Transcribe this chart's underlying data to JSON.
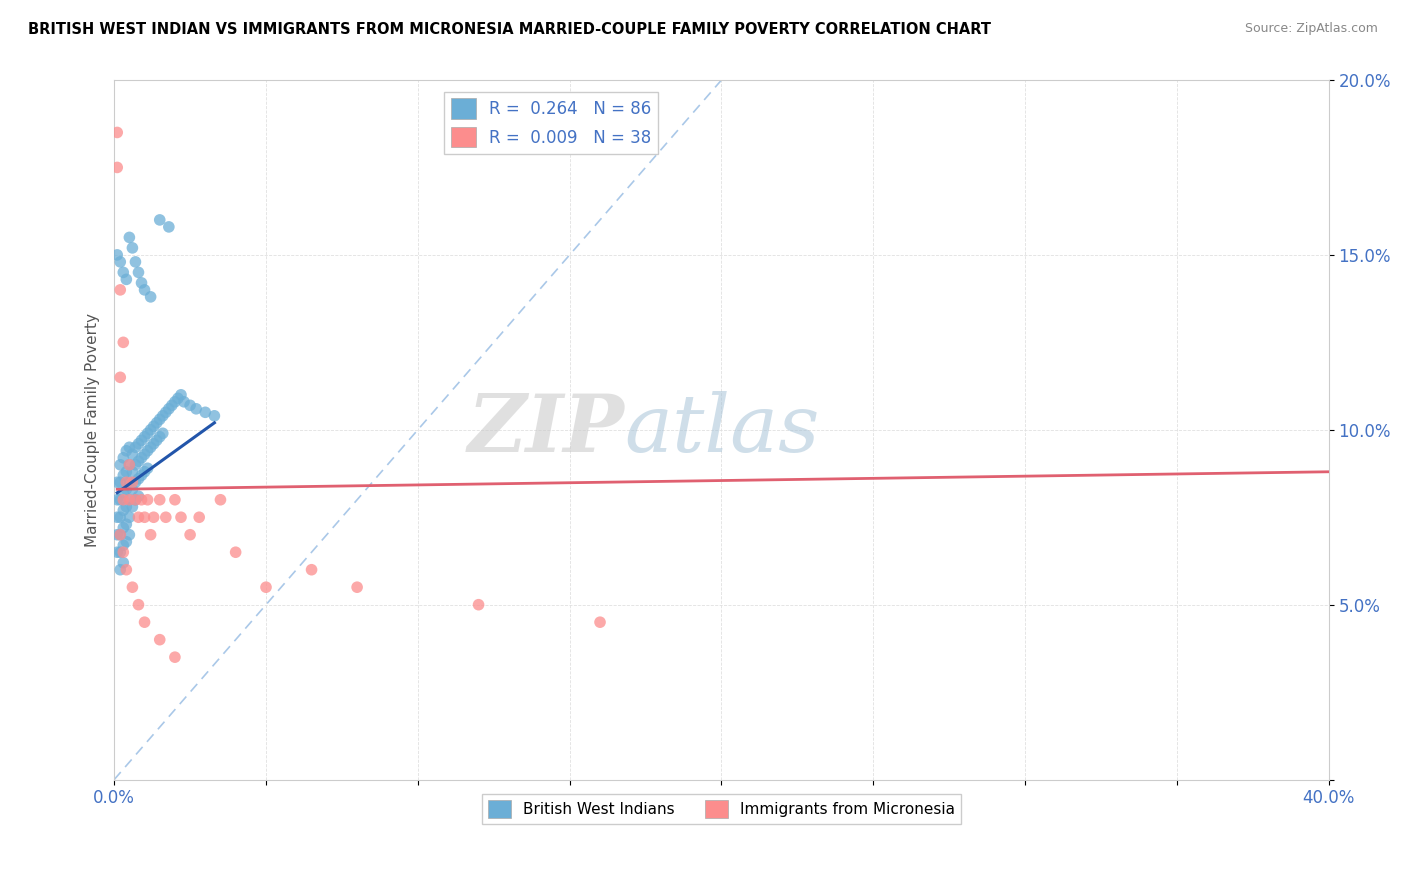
{
  "title": "BRITISH WEST INDIAN VS IMMIGRANTS FROM MICRONESIA MARRIED-COUPLE FAMILY POVERTY CORRELATION CHART",
  "source": "Source: ZipAtlas.com",
  "ylabel": "Married-Couple Family Poverty",
  "xlim": [
    0,
    0.4
  ],
  "ylim": [
    0,
    0.2
  ],
  "blue_color": "#6baed6",
  "pink_color": "#fc8d8d",
  "blue_line_color": "#2255aa",
  "pink_line_color": "#e06070",
  "ref_line_color": "#aac8e8",
  "watermark_zip": "ZIP",
  "watermark_atlas": "atlas",
  "blue_scatter_x": [
    0.001,
    0.001,
    0.001,
    0.001,
    0.001,
    0.002,
    0.002,
    0.002,
    0.002,
    0.002,
    0.002,
    0.002,
    0.003,
    0.003,
    0.003,
    0.003,
    0.003,
    0.003,
    0.003,
    0.004,
    0.004,
    0.004,
    0.004,
    0.004,
    0.004,
    0.005,
    0.005,
    0.005,
    0.005,
    0.005,
    0.005,
    0.006,
    0.006,
    0.006,
    0.006,
    0.007,
    0.007,
    0.007,
    0.007,
    0.008,
    0.008,
    0.008,
    0.008,
    0.009,
    0.009,
    0.009,
    0.01,
    0.01,
    0.01,
    0.011,
    0.011,
    0.011,
    0.012,
    0.012,
    0.013,
    0.013,
    0.014,
    0.014,
    0.015,
    0.015,
    0.016,
    0.016,
    0.017,
    0.018,
    0.019,
    0.02,
    0.021,
    0.022,
    0.023,
    0.025,
    0.027,
    0.03,
    0.033,
    0.001,
    0.002,
    0.003,
    0.004,
    0.005,
    0.006,
    0.007,
    0.008,
    0.009,
    0.01,
    0.012,
    0.015,
    0.018
  ],
  "blue_scatter_y": [
    0.085,
    0.08,
    0.075,
    0.07,
    0.065,
    0.09,
    0.085,
    0.08,
    0.075,
    0.07,
    0.065,
    0.06,
    0.092,
    0.087,
    0.082,
    0.077,
    0.072,
    0.067,
    0.062,
    0.094,
    0.088,
    0.083,
    0.078,
    0.073,
    0.068,
    0.095,
    0.09,
    0.085,
    0.08,
    0.075,
    0.07,
    0.093,
    0.088,
    0.083,
    0.078,
    0.095,
    0.09,
    0.085,
    0.08,
    0.096,
    0.091,
    0.086,
    0.081,
    0.097,
    0.092,
    0.087,
    0.098,
    0.093,
    0.088,
    0.099,
    0.094,
    0.089,
    0.1,
    0.095,
    0.101,
    0.096,
    0.102,
    0.097,
    0.103,
    0.098,
    0.104,
    0.099,
    0.105,
    0.106,
    0.107,
    0.108,
    0.109,
    0.11,
    0.108,
    0.107,
    0.106,
    0.105,
    0.104,
    0.15,
    0.148,
    0.145,
    0.143,
    0.155,
    0.152,
    0.148,
    0.145,
    0.142,
    0.14,
    0.138,
    0.16,
    0.158
  ],
  "pink_scatter_x": [
    0.001,
    0.001,
    0.002,
    0.002,
    0.003,
    0.003,
    0.004,
    0.005,
    0.005,
    0.006,
    0.007,
    0.008,
    0.009,
    0.01,
    0.011,
    0.012,
    0.013,
    0.015,
    0.017,
    0.02,
    0.022,
    0.025,
    0.028,
    0.035,
    0.04,
    0.05,
    0.065,
    0.08,
    0.12,
    0.16,
    0.002,
    0.003,
    0.004,
    0.006,
    0.008,
    0.01,
    0.015,
    0.02
  ],
  "pink_scatter_y": [
    0.185,
    0.175,
    0.14,
    0.115,
    0.125,
    0.08,
    0.085,
    0.09,
    0.08,
    0.085,
    0.08,
    0.075,
    0.08,
    0.075,
    0.08,
    0.07,
    0.075,
    0.08,
    0.075,
    0.08,
    0.075,
    0.07,
    0.075,
    0.08,
    0.065,
    0.055,
    0.06,
    0.055,
    0.05,
    0.045,
    0.07,
    0.065,
    0.06,
    0.055,
    0.05,
    0.045,
    0.04,
    0.035
  ],
  "blue_trendline_x": [
    0.001,
    0.033
  ],
  "blue_trendline_y": [
    0.082,
    0.102
  ],
  "pink_trendline_x": [
    0.001,
    0.4
  ],
  "pink_trendline_y": [
    0.083,
    0.088
  ],
  "ref_line_x": [
    0.0,
    0.2
  ],
  "ref_line_y": [
    0.0,
    0.2
  ]
}
